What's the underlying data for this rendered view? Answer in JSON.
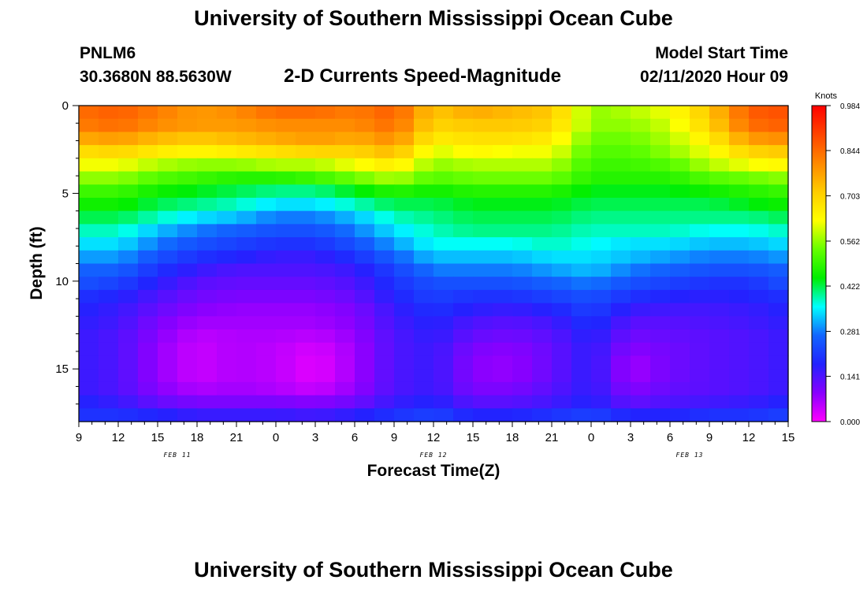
{
  "header": {
    "title": "University of Southern Mississippi Ocean Cube",
    "station_id": "PNLM6",
    "coords": "30.3680N 88.5630W",
    "plot_title": "2-D Currents Speed-Magnitude",
    "model_label": "Model Start Time",
    "model_time": "02/11/2020 Hour 09"
  },
  "footer": {
    "title": "University of Southern Mississippi Ocean Cube"
  },
  "chart_data": {
    "type": "heatmap",
    "title": "2-D Currents Speed-Magnitude",
    "xlabel": "Forecast Time(Z)",
    "ylabel": "Depth (ft)",
    "x_unit": "forecast hour from 02/11/2020 09Z",
    "xlim": [
      0,
      54
    ],
    "ylim": [
      0,
      18
    ],
    "y_inverted": true,
    "x_ticks": [
      0,
      3,
      6,
      9,
      12,
      15,
      18,
      21,
      24,
      27,
      30,
      33,
      36,
      39,
      42,
      45,
      48,
      51,
      54
    ],
    "x_tick_labels": [
      "9",
      "12",
      "15",
      "18",
      "21",
      "0",
      "3",
      "6",
      "9",
      "12",
      "15",
      "18",
      "21",
      "0",
      "3",
      "6",
      "9",
      "12",
      "15"
    ],
    "y_ticks": [
      0,
      5,
      10,
      15
    ],
    "y_tick_labels": [
      "0",
      "5",
      "10",
      "15"
    ],
    "date_labels": [
      {
        "x": 7.5,
        "label": "FEB 11"
      },
      {
        "x": 27,
        "label": "FEB 12"
      },
      {
        "x": 46.5,
        "label": "FEB 13"
      }
    ],
    "colorbar": {
      "unit": "Knots",
      "min": 0.0,
      "max": 0.984,
      "ticks": [
        0.984,
        0.844,
        0.703,
        0.562,
        0.422,
        0.281,
        0.141,
        0.0
      ],
      "tick_labels": [
        "0.984",
        "0.844",
        "0.703",
        "0.562",
        "0.422",
        "0.281",
        "0.141",
        "0.000"
      ],
      "colors": [
        "#ff00ff",
        "#8800ff",
        "#2222ff",
        "#1166ff",
        "#00ffff",
        "#00ee00",
        "#66ff00",
        "#ffff00",
        "#ffcc00",
        "#ff8800",
        "#ff4400",
        "#ff0000"
      ]
    },
    "depth_levels": [
      0.4,
      1.1,
      1.9,
      2.6,
      3.4,
      4.1,
      4.9,
      5.6,
      6.4,
      7.1,
      7.9,
      8.6,
      9.4,
      10.1,
      10.9,
      11.6,
      12.4,
      13.1,
      13.9,
      14.6,
      15.4,
      16.1,
      16.9,
      17.6
    ],
    "time_keyframes": {
      "hours": [
        0,
        3,
        6,
        9,
        12,
        15,
        18,
        21,
        24,
        27,
        30,
        33,
        36,
        39,
        42,
        45,
        48,
        51,
        54
      ],
      "speeds_knots": [
        [
          0.84,
          0.86,
          0.82,
          0.78,
          0.8,
          0.84,
          0.84,
          0.82,
          0.86,
          0.72,
          0.76,
          0.74,
          0.72,
          0.56,
          0.58,
          0.62,
          0.72,
          0.86,
          0.88
        ],
        [
          0.82,
          0.84,
          0.8,
          0.78,
          0.78,
          0.8,
          0.8,
          0.8,
          0.84,
          0.7,
          0.72,
          0.72,
          0.7,
          0.56,
          0.56,
          0.6,
          0.7,
          0.84,
          0.86
        ],
        [
          0.76,
          0.78,
          0.74,
          0.72,
          0.74,
          0.76,
          0.78,
          0.76,
          0.8,
          0.66,
          0.68,
          0.68,
          0.66,
          0.54,
          0.54,
          0.58,
          0.66,
          0.78,
          0.8
        ],
        [
          0.68,
          0.7,
          0.66,
          0.64,
          0.66,
          0.68,
          0.7,
          0.7,
          0.74,
          0.6,
          0.64,
          0.62,
          0.62,
          0.52,
          0.52,
          0.56,
          0.62,
          0.7,
          0.72
        ],
        [
          0.62,
          0.62,
          0.58,
          0.56,
          0.56,
          0.58,
          0.58,
          0.62,
          0.66,
          0.56,
          0.58,
          0.58,
          0.58,
          0.5,
          0.5,
          0.52,
          0.58,
          0.62,
          0.64
        ],
        [
          0.56,
          0.56,
          0.52,
          0.5,
          0.48,
          0.48,
          0.5,
          0.54,
          0.58,
          0.52,
          0.54,
          0.54,
          0.54,
          0.48,
          0.48,
          0.48,
          0.52,
          0.54,
          0.56
        ],
        [
          0.5,
          0.5,
          0.46,
          0.44,
          0.42,
          0.4,
          0.4,
          0.44,
          0.48,
          0.46,
          0.48,
          0.48,
          0.48,
          0.44,
          0.44,
          0.44,
          0.46,
          0.48,
          0.5
        ],
        [
          0.46,
          0.46,
          0.42,
          0.4,
          0.38,
          0.34,
          0.34,
          0.38,
          0.42,
          0.42,
          0.44,
          0.44,
          0.44,
          0.42,
          0.42,
          0.42,
          0.42,
          0.44,
          0.46
        ],
        [
          0.42,
          0.42,
          0.38,
          0.34,
          0.32,
          0.28,
          0.28,
          0.32,
          0.38,
          0.4,
          0.42,
          0.42,
          0.42,
          0.4,
          0.4,
          0.4,
          0.4,
          0.4,
          0.42
        ],
        [
          0.38,
          0.38,
          0.32,
          0.28,
          0.26,
          0.24,
          0.24,
          0.28,
          0.34,
          0.38,
          0.4,
          0.4,
          0.4,
          0.38,
          0.38,
          0.38,
          0.36,
          0.36,
          0.38
        ],
        [
          0.34,
          0.34,
          0.28,
          0.24,
          0.22,
          0.2,
          0.2,
          0.24,
          0.3,
          0.36,
          0.36,
          0.36,
          0.38,
          0.36,
          0.34,
          0.34,
          0.32,
          0.32,
          0.34
        ],
        [
          0.3,
          0.3,
          0.24,
          0.2,
          0.18,
          0.16,
          0.16,
          0.2,
          0.26,
          0.32,
          0.32,
          0.32,
          0.34,
          0.34,
          0.32,
          0.3,
          0.28,
          0.28,
          0.3
        ],
        [
          0.26,
          0.26,
          0.2,
          0.16,
          0.14,
          0.14,
          0.14,
          0.16,
          0.22,
          0.28,
          0.28,
          0.28,
          0.3,
          0.32,
          0.28,
          0.26,
          0.24,
          0.24,
          0.26
        ],
        [
          0.24,
          0.22,
          0.17,
          0.13,
          0.12,
          0.12,
          0.12,
          0.14,
          0.2,
          0.24,
          0.24,
          0.24,
          0.26,
          0.28,
          0.24,
          0.22,
          0.2,
          0.2,
          0.24
        ],
        [
          0.2,
          0.18,
          0.14,
          0.11,
          0.1,
          0.1,
          0.1,
          0.12,
          0.18,
          0.22,
          0.2,
          0.2,
          0.22,
          0.24,
          0.2,
          0.18,
          0.17,
          0.18,
          0.2
        ],
        [
          0.18,
          0.16,
          0.12,
          0.09,
          0.08,
          0.08,
          0.08,
          0.1,
          0.16,
          0.2,
          0.17,
          0.16,
          0.18,
          0.22,
          0.16,
          0.15,
          0.15,
          0.16,
          0.18
        ],
        [
          0.17,
          0.15,
          0.1,
          0.07,
          0.07,
          0.07,
          0.07,
          0.09,
          0.15,
          0.18,
          0.14,
          0.13,
          0.15,
          0.2,
          0.13,
          0.13,
          0.14,
          0.15,
          0.17
        ],
        [
          0.16,
          0.14,
          0.09,
          0.05,
          0.06,
          0.06,
          0.05,
          0.08,
          0.14,
          0.17,
          0.12,
          0.11,
          0.13,
          0.18,
          0.11,
          0.12,
          0.13,
          0.14,
          0.16
        ],
        [
          0.16,
          0.14,
          0.08,
          0.04,
          0.06,
          0.05,
          0.03,
          0.07,
          0.14,
          0.16,
          0.1,
          0.09,
          0.12,
          0.17,
          0.09,
          0.11,
          0.13,
          0.14,
          0.16
        ],
        [
          0.16,
          0.14,
          0.08,
          0.04,
          0.06,
          0.05,
          0.02,
          0.07,
          0.14,
          0.16,
          0.09,
          0.08,
          0.12,
          0.17,
          0.07,
          0.11,
          0.13,
          0.14,
          0.16
        ],
        [
          0.16,
          0.14,
          0.08,
          0.04,
          0.06,
          0.05,
          0.02,
          0.07,
          0.14,
          0.16,
          0.09,
          0.08,
          0.12,
          0.17,
          0.07,
          0.11,
          0.13,
          0.14,
          0.16
        ],
        [
          0.16,
          0.14,
          0.09,
          0.06,
          0.07,
          0.06,
          0.04,
          0.08,
          0.14,
          0.16,
          0.1,
          0.1,
          0.13,
          0.17,
          0.09,
          0.12,
          0.13,
          0.14,
          0.16
        ],
        [
          0.18,
          0.16,
          0.12,
          0.1,
          0.1,
          0.1,
          0.09,
          0.11,
          0.16,
          0.18,
          0.13,
          0.13,
          0.15,
          0.18,
          0.12,
          0.14,
          0.15,
          0.16,
          0.18
        ],
        [
          0.2,
          0.2,
          0.18,
          0.16,
          0.16,
          0.16,
          0.15,
          0.17,
          0.2,
          0.22,
          0.18,
          0.18,
          0.2,
          0.22,
          0.18,
          0.18,
          0.2,
          0.2,
          0.22
        ]
      ]
    }
  }
}
